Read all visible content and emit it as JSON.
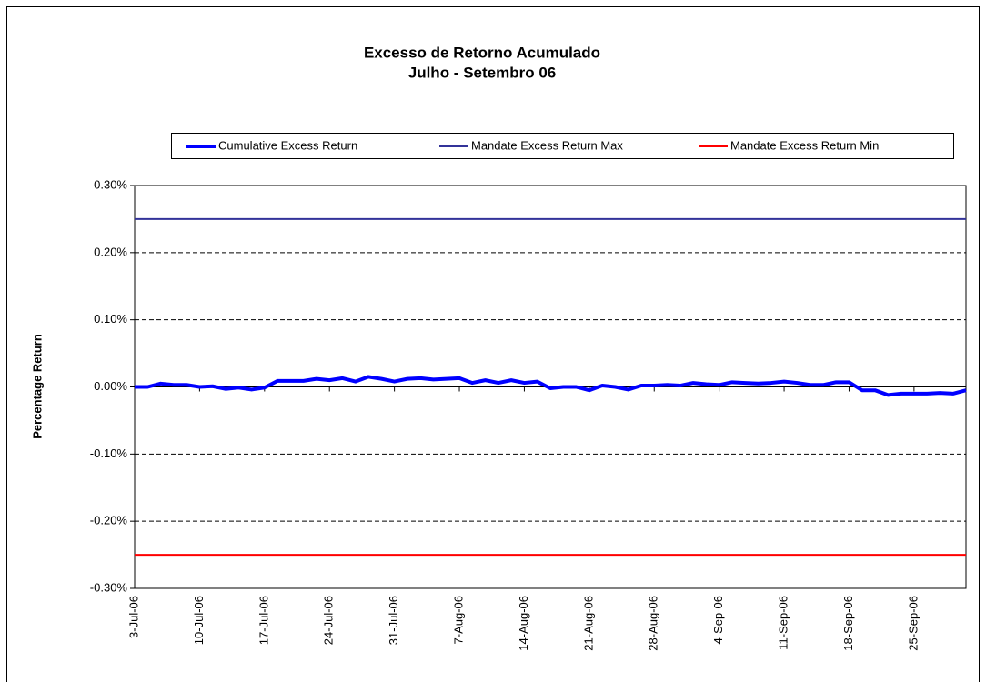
{
  "chart_data": {
    "type": "line",
    "title": "Excesso de Retorno Acumulado",
    "subtitle": "Julho - Setembro 06",
    "y_label": "Percentage Return",
    "categories": [
      "3-Jul-06",
      null,
      null,
      null,
      null,
      "10-Jul-06",
      null,
      null,
      null,
      null,
      "17-Jul-06",
      null,
      null,
      null,
      null,
      "24-Jul-06",
      null,
      null,
      null,
      null,
      "31-Jul-06",
      null,
      null,
      null,
      null,
      "7-Aug-06",
      null,
      null,
      null,
      null,
      "14-Aug-06",
      null,
      null,
      null,
      null,
      "21-Aug-06",
      null,
      null,
      null,
      null,
      "28-Aug-06",
      null,
      null,
      null,
      null,
      "4-Sep-06",
      null,
      null,
      null,
      null,
      "11-Sep-06",
      null,
      null,
      null,
      null,
      "18-Sep-06",
      null,
      null,
      null,
      null,
      "25-Sep-06",
      null,
      null,
      null,
      null
    ],
    "series": [
      {
        "name": "Cumulative Excess Return",
        "color": "#0000ff",
        "width": 4,
        "values": [
          0.0,
          0.0,
          0.005,
          0.003,
          0.003,
          0.0,
          0.001,
          -0.003,
          -0.001,
          -0.004,
          -0.001,
          0.009,
          0.009,
          0.009,
          0.012,
          0.01,
          0.013,
          0.008,
          0.015,
          0.012,
          0.008,
          0.012,
          0.013,
          0.011,
          0.012,
          0.013,
          0.006,
          0.01,
          0.006,
          0.01,
          0.006,
          0.008,
          -0.002,
          0.0,
          0.0,
          -0.005,
          0.002,
          0.0,
          -0.004,
          0.002,
          0.002,
          0.003,
          0.002,
          0.006,
          0.004,
          0.003,
          0.007,
          0.006,
          0.005,
          0.006,
          0.008,
          0.006,
          0.003,
          0.003,
          0.007,
          0.007,
          -0.005,
          -0.005,
          -0.012,
          -0.01,
          -0.01,
          -0.01,
          -0.009,
          -0.01,
          -0.005
        ]
      },
      {
        "name": "Mandate Excess Return Max",
        "color": "#333399",
        "width": 2,
        "values": [
          0.25,
          0.25,
          0.25,
          0.25,
          0.25,
          0.25,
          0.25,
          0.25,
          0.25,
          0.25,
          0.25,
          0.25,
          0.25,
          0.25,
          0.25,
          0.25,
          0.25,
          0.25,
          0.25,
          0.25,
          0.25,
          0.25,
          0.25,
          0.25,
          0.25,
          0.25,
          0.25,
          0.25,
          0.25,
          0.25,
          0.25,
          0.25,
          0.25,
          0.25,
          0.25,
          0.25,
          0.25,
          0.25,
          0.25,
          0.25,
          0.25,
          0.25,
          0.25,
          0.25,
          0.25,
          0.25,
          0.25,
          0.25,
          0.25,
          0.25,
          0.25,
          0.25,
          0.25,
          0.25,
          0.25,
          0.25,
          0.25,
          0.25,
          0.25,
          0.25,
          0.25,
          0.25,
          0.25,
          0.25,
          0.25
        ]
      },
      {
        "name": "Mandate Excess Return Min",
        "color": "#ff0000",
        "width": 2,
        "values": [
          -0.25,
          -0.25,
          -0.25,
          -0.25,
          -0.25,
          -0.25,
          -0.25,
          -0.25,
          -0.25,
          -0.25,
          -0.25,
          -0.25,
          -0.25,
          -0.25,
          -0.25,
          -0.25,
          -0.25,
          -0.25,
          -0.25,
          -0.25,
          -0.25,
          -0.25,
          -0.25,
          -0.25,
          -0.25,
          -0.25,
          -0.25,
          -0.25,
          -0.25,
          -0.25,
          -0.25,
          -0.25,
          -0.25,
          -0.25,
          -0.25,
          -0.25,
          -0.25,
          -0.25,
          -0.25,
          -0.25,
          -0.25,
          -0.25,
          -0.25,
          -0.25,
          -0.25,
          -0.25,
          -0.25,
          -0.25,
          -0.25,
          -0.25,
          -0.25,
          -0.25,
          -0.25,
          -0.25,
          -0.25,
          -0.25,
          -0.25,
          -0.25,
          -0.25,
          -0.25,
          -0.25,
          -0.25,
          -0.25,
          -0.25,
          -0.25
        ]
      }
    ],
    "ylim": [
      -0.3,
      0.3
    ],
    "yticks": [
      {
        "value": -0.3,
        "label": "-0.30%"
      },
      {
        "value": -0.2,
        "label": "-0.20%"
      },
      {
        "value": -0.1,
        "label": "-0.10%"
      },
      {
        "value": 0,
        "label": "0.00%"
      },
      {
        "value": 0.1,
        "label": "0.10%"
      },
      {
        "value": 0.2,
        "label": "0.20%"
      },
      {
        "value": 0.3,
        "label": "0.30%"
      }
    ],
    "grid": true,
    "legend": "top"
  }
}
